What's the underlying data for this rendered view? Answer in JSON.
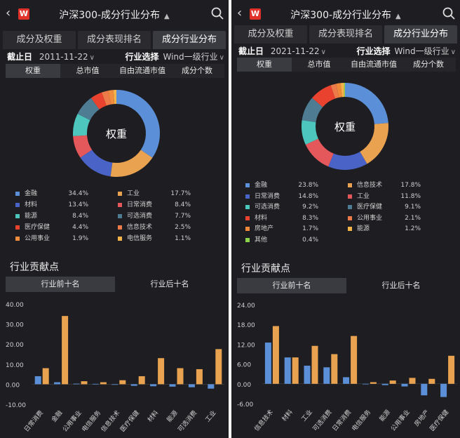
{
  "colors": {
    "finance": "#5b8fd8",
    "industry": "#e9a24f",
    "materials": "#4a63c6",
    "consumer_staples": "#e4585c",
    "energy": "#4dc7bd",
    "consumer_disc": "#4e7c93",
    "healthcare": "#e9432f",
    "it": "#ec7b49",
    "utilities": "#f08c3d",
    "telecom": "#f3b44a",
    "realestate": "#f08a3a",
    "other": "#8bd54a",
    "bar_blue": "#5b8fd8",
    "bar_orange": "#e9a24f"
  },
  "panels": [
    {
      "title": "沪深300-成分行业分布",
      "tabs": [
        "成分及权重",
        "成分表现排名",
        "成分行业分布"
      ],
      "date_label": "截止日",
      "date_value": "2011-11-22",
      "industry_label": "行业选择",
      "industry_value": "Wind一级行业",
      "segments": [
        "权重",
        "总市值",
        "自由流通市值",
        "成分个数"
      ],
      "donut_center": "权重",
      "legend": [
        {
          "name": "金融",
          "value": "34.4%",
          "color_key": "finance"
        },
        {
          "name": "工业",
          "value": "17.7%",
          "color_key": "industry"
        },
        {
          "name": "材料",
          "value": "13.4%",
          "color_key": "materials"
        },
        {
          "name": "日常消费",
          "value": "8.4%",
          "color_key": "consumer_staples"
        },
        {
          "name": "能源",
          "value": "8.4%",
          "color_key": "energy"
        },
        {
          "name": "可选消费",
          "value": "7.7%",
          "color_key": "consumer_disc"
        },
        {
          "name": "医疗保健",
          "value": "4.4%",
          "color_key": "healthcare"
        },
        {
          "name": "信息技术",
          "value": "2.5%",
          "color_key": "it"
        },
        {
          "name": "公用事业",
          "value": "1.9%",
          "color_key": "utilities"
        },
        {
          "name": "电信服务",
          "value": "1.1%",
          "color_key": "telecom"
        }
      ],
      "section_title": "行业贡献点",
      "subtabs": [
        "行业前十名",
        "行业后十名"
      ]
    },
    {
      "title": "沪深300-成分行业分布",
      "tabs": [
        "成分及权重",
        "成分表现排名",
        "成分行业分布"
      ],
      "date_label": "截止日",
      "date_value": "2021-11-22",
      "industry_label": "行业选择",
      "industry_value": "Wind一级行业",
      "segments": [
        "权重",
        "总市值",
        "自由流通市值",
        "成分个数"
      ],
      "donut_center": "权重",
      "legend": [
        {
          "name": "金融",
          "value": "23.8%",
          "color_key": "finance"
        },
        {
          "name": "信息技术",
          "value": "17.8%",
          "color_key": "industry"
        },
        {
          "name": "日常消费",
          "value": "14.8%",
          "color_key": "materials"
        },
        {
          "name": "工业",
          "value": "11.8%",
          "color_key": "consumer_staples"
        },
        {
          "name": "可选消费",
          "value": "9.2%",
          "color_key": "energy"
        },
        {
          "name": "医疗保健",
          "value": "9.1%",
          "color_key": "consumer_disc"
        },
        {
          "name": "材料",
          "value": "8.3%",
          "color_key": "healthcare"
        },
        {
          "name": "公用事业",
          "value": "2.1%",
          "color_key": "it"
        },
        {
          "name": "房地产",
          "value": "1.7%",
          "color_key": "realestate"
        },
        {
          "name": "能源",
          "value": "1.2%",
          "color_key": "telecom"
        },
        {
          "name": "其他",
          "value": "0.4%",
          "color_key": "other"
        }
      ],
      "section_title": "行业贡献点",
      "subtabs": [
        "行业前十名",
        "行业后十名"
      ]
    }
  ],
  "chart_data": [
    {
      "type": "bar",
      "categories": [
        "日常消费",
        "金融",
        "公用事业",
        "电信服务",
        "信息技术",
        "医疗保健",
        "材料",
        "能源",
        "可选消费",
        "工业"
      ],
      "series": [
        {
          "values": [
            4,
            1,
            0.3,
            0.2,
            0,
            -0.8,
            -1,
            -1.2,
            -1.5,
            -2.2
          ]
        },
        {
          "values": [
            8,
            34,
            1.5,
            1,
            2,
            4,
            13,
            8,
            7.5,
            17.5
          ]
        }
      ],
      "yticks": [
        "40.00",
        "30.00",
        "20.00",
        "10.00",
        "0.00",
        "-10.00"
      ],
      "ylim": [
        -10,
        40
      ]
    },
    {
      "type": "bar",
      "categories": [
        "信息技术",
        "材料",
        "工业",
        "可选消费",
        "日常消费",
        "电信服务",
        "能源",
        "公用事业",
        "房地产",
        "医疗保健"
      ],
      "series": [
        {
          "values": [
            12.5,
            8,
            5.5,
            5,
            2,
            0,
            -0.4,
            -0.8,
            -3.5,
            -4
          ]
        },
        {
          "values": [
            17.5,
            8,
            11.5,
            9,
            14.5,
            0.5,
            1,
            1.8,
            1.5,
            8.5
          ]
        }
      ],
      "yticks": [
        "24.00",
        "18.00",
        "12.00",
        "6.00",
        "0.00",
        "-6.00"
      ],
      "ylim": [
        -6,
        24
      ]
    }
  ]
}
